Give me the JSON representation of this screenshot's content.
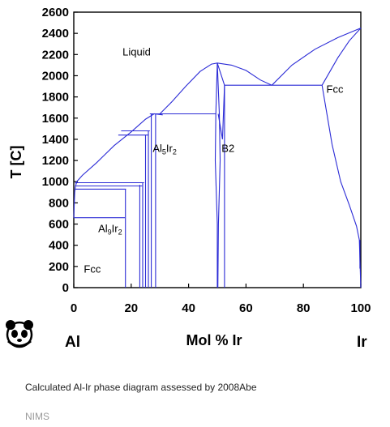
{
  "chart_data": {
    "type": "phase-diagram",
    "y_label": "T [C]",
    "x_label": "Mol % Ir",
    "x_ticks": [
      "0",
      "20",
      "40",
      "60",
      "80",
      "100"
    ],
    "y_ticks": [
      "0",
      "200",
      "400",
      "600",
      "800",
      "1000",
      "1200",
      "1400",
      "1600",
      "1800",
      "2000",
      "2200",
      "2400",
      "2600"
    ],
    "xlim": [
      0,
      100
    ],
    "ylim": [
      0,
      2600
    ],
    "grid": false,
    "line_color": "#2b2bd6",
    "left_element": "Al",
    "right_element": "Ir",
    "regions": [
      {
        "label": "Liquid"
      },
      {
        "label": "Al5Ir2",
        "base": "Al",
        "sub1": "5",
        "mid": "Ir",
        "sub2": "2"
      },
      {
        "label": "B2"
      },
      {
        "label": "Fcc"
      },
      {
        "label": "Al9Ir2",
        "base": "Al",
        "sub1": "9",
        "mid": "Ir",
        "sub2": "2"
      },
      {
        "label": "Fcc"
      }
    ],
    "boundaries": [
      {
        "name": "liquidus-left",
        "points": [
          [
            0.5,
            985
          ],
          [
            3,
            1060
          ],
          [
            8,
            1180
          ],
          [
            14,
            1340
          ],
          [
            20,
            1470
          ],
          [
            25,
            1590
          ],
          [
            28,
            1640
          ],
          [
            31,
            1630
          ]
        ]
      },
      {
        "name": "liquidus-left-lower",
        "points": [
          [
            0,
            660
          ],
          [
            0.3,
            900
          ],
          [
            0.6,
            960
          ],
          [
            1,
            990
          ]
        ]
      },
      {
        "name": "liquidus-dome",
        "points": [
          [
            30,
            1640
          ],
          [
            34,
            1750
          ],
          [
            39,
            1900
          ],
          [
            44,
            2040
          ],
          [
            48,
            2110
          ],
          [
            50,
            2120
          ],
          [
            55,
            2100
          ],
          [
            60,
            2050
          ],
          [
            65,
            1960
          ],
          [
            69,
            1910
          ]
        ]
      },
      {
        "name": "liquidus-right",
        "points": [
          [
            69,
            1910
          ],
          [
            76,
            2100
          ],
          [
            84,
            2250
          ],
          [
            92,
            2360
          ],
          [
            100,
            2450
          ]
        ]
      },
      {
        "name": "solidus-right",
        "points": [
          [
            86.5,
            1910
          ],
          [
            92,
            2170
          ],
          [
            96,
            2330
          ],
          [
            100,
            2450
          ]
        ]
      },
      {
        "name": "fcc-solvus-outer",
        "points": [
          [
            86.5,
            1910
          ],
          [
            90,
            1350
          ],
          [
            93,
            1000
          ],
          [
            96,
            780
          ],
          [
            98.5,
            580
          ],
          [
            99.5,
            450
          ],
          [
            100,
            0
          ]
        ]
      },
      {
        "name": "fcc-solvus-inner",
        "points": [
          [
            99.7,
            180
          ],
          [
            99.7,
            450
          ]
        ]
      },
      {
        "name": "b2-left",
        "points": [
          [
            50,
            2120
          ],
          [
            49.5,
            1640
          ],
          [
            49.3,
            1200
          ],
          [
            50,
            600
          ],
          [
            50,
            0
          ]
        ]
      },
      {
        "name": "b2-left-inner",
        "points": [
          [
            50,
            2120
          ],
          [
            50.7,
            1640
          ],
          [
            51,
            1200
          ],
          [
            50.4,
            600
          ],
          [
            50.2,
            0
          ]
        ]
      },
      {
        "name": "b2-right",
        "points": [
          [
            50,
            2120
          ],
          [
            52.5,
            1910
          ],
          [
            52.5,
            0
          ]
        ]
      },
      {
        "name": "b2-notch",
        "points": [
          [
            50.3,
            1640
          ],
          [
            51.8,
            1400
          ],
          [
            52.5,
            1910
          ]
        ]
      },
      {
        "name": "eutectic-right",
        "points": [
          [
            52.5,
            1910
          ],
          [
            86.5,
            1910
          ]
        ]
      },
      {
        "name": "peritectic-1640",
        "points": [
          [
            26.5,
            1640
          ],
          [
            49.6,
            1640
          ]
        ]
      },
      {
        "name": "peritectic-1480",
        "points": [
          [
            16.5,
            1480
          ],
          [
            26.5,
            1480
          ]
        ]
      },
      {
        "name": "peritectic-1440",
        "points": [
          [
            15.5,
            1440
          ],
          [
            26,
            1440
          ]
        ]
      },
      {
        "name": "peritectic-990",
        "points": [
          [
            0.8,
            990
          ],
          [
            24.5,
            990
          ]
        ]
      },
      {
        "name": "peritectic-960",
        "points": [
          [
            0.6,
            960
          ],
          [
            23.8,
            960
          ]
        ]
      },
      {
        "name": "peritectic-930",
        "points": [
          [
            0.4,
            930
          ],
          [
            18.2,
            930
          ]
        ]
      },
      {
        "name": "eutectoid-660",
        "points": [
          [
            0,
            660
          ],
          [
            17.8,
            660
          ]
        ]
      },
      {
        "name": "line-x18",
        "points": [
          [
            18,
            0
          ],
          [
            18,
            930
          ]
        ]
      },
      {
        "name": "line-x23",
        "points": [
          [
            23,
            0
          ],
          [
            23,
            970
          ]
        ]
      },
      {
        "name": "line-x24",
        "points": [
          [
            24,
            0
          ],
          [
            24,
            990
          ]
        ]
      },
      {
        "name": "line-x25",
        "points": [
          [
            25,
            0
          ],
          [
            25,
            1440
          ]
        ]
      },
      {
        "name": "line-x26",
        "points": [
          [
            26,
            0
          ],
          [
            26,
            1480
          ]
        ]
      },
      {
        "name": "line-x27",
        "points": [
          [
            27,
            0
          ],
          [
            27,
            1640
          ]
        ]
      },
      {
        "name": "line-x28",
        "points": [
          [
            28.5,
            0
          ],
          [
            28.5,
            1640
          ]
        ]
      }
    ]
  },
  "caption": "Calculated Al-Ir phase diagram assessed by 2008Abe",
  "source": "NIMS",
  "logo_icon": "panda-icon"
}
